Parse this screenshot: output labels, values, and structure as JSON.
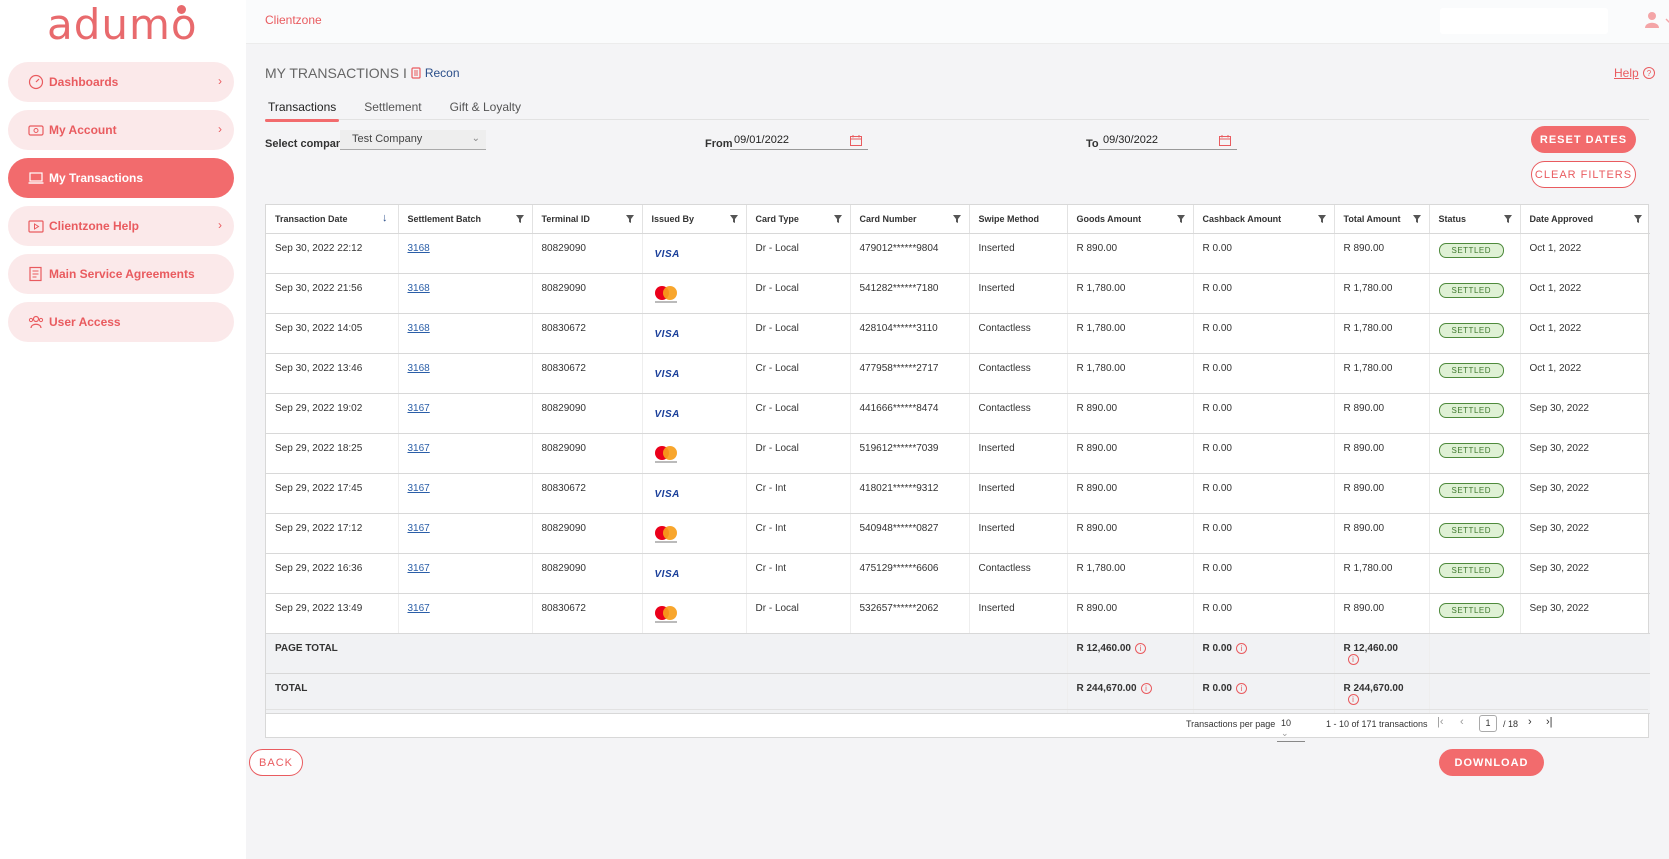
{
  "brand": {
    "logo": "adumo"
  },
  "sidebar": {
    "items": [
      {
        "label": "Dashboards",
        "icon": "dashboard-gauge-icon",
        "has_chevron": true,
        "active": false
      },
      {
        "label": "My Account",
        "icon": "account-money-icon",
        "has_chevron": true,
        "active": false
      },
      {
        "label": "My Transactions",
        "icon": "laptop-icon",
        "has_chevron": false,
        "active": true
      },
      {
        "label": "Clientzone Help",
        "icon": "help-video-icon",
        "has_chevron": true,
        "active": false
      },
      {
        "label": "Main Service Agreements",
        "icon": "agreement-doc-icon",
        "has_chevron": false,
        "active": false
      },
      {
        "label": "User Access",
        "icon": "users-icon",
        "has_chevron": false,
        "active": false
      }
    ]
  },
  "topbar": {
    "breadcrumb": "Clientzone"
  },
  "page": {
    "title": "MY TRANSACTIONS I",
    "recon_label": "Recon",
    "help_label": "Help",
    "tabs": [
      "Transactions",
      "Settlement",
      "Gift & Loyalty"
    ],
    "active_tab": "Transactions"
  },
  "filters": {
    "company_label": "Select company",
    "company_value": "Test Company",
    "from_label": "From",
    "from_value": "09/01/2022",
    "to_label": "To",
    "to_value": "09/30/2022",
    "reset_dates_label": "RESET DATES",
    "clear_filters_label": "CLEAR FILTERS"
  },
  "table": {
    "columns": [
      "Transaction Date",
      "Settlement Batch",
      "Terminal ID",
      "Issued By",
      "Card Type",
      "Card Number",
      "Swipe Method",
      "Goods Amount",
      "Cashback Amount",
      "Total Amount",
      "Status",
      "Date Approved"
    ],
    "rows": [
      {
        "date": "Sep 30, 2022 22:12",
        "batch": "3168",
        "terminal": "80829090",
        "issuer": "visa",
        "card_type": "Dr - Local",
        "card_number": "479012******9804",
        "swipe": "Inserted",
        "goods": "R 890.00",
        "cashback": "R 0.00",
        "total": "R 890.00",
        "status": "SETTLED",
        "approved": "Oct 1, 2022"
      },
      {
        "date": "Sep 30, 2022 21:56",
        "batch": "3168",
        "terminal": "80829090",
        "issuer": "mastercard",
        "card_type": "Dr - Local",
        "card_number": "541282******7180",
        "swipe": "Inserted",
        "goods": "R 1,780.00",
        "cashback": "R 0.00",
        "total": "R 1,780.00",
        "status": "SETTLED",
        "approved": "Oct 1, 2022"
      },
      {
        "date": "Sep 30, 2022 14:05",
        "batch": "3168",
        "terminal": "80830672",
        "issuer": "visa",
        "card_type": "Dr - Local",
        "card_number": "428104******3110",
        "swipe": "Contactless",
        "goods": "R 1,780.00",
        "cashback": "R 0.00",
        "total": "R 1,780.00",
        "status": "SETTLED",
        "approved": "Oct 1, 2022"
      },
      {
        "date": "Sep 30, 2022 13:46",
        "batch": "3168",
        "terminal": "80830672",
        "issuer": "visa",
        "card_type": "Cr - Local",
        "card_number": "477958******2717",
        "swipe": "Contactless",
        "goods": "R 1,780.00",
        "cashback": "R 0.00",
        "total": "R 1,780.00",
        "status": "SETTLED",
        "approved": "Oct 1, 2022"
      },
      {
        "date": "Sep 29, 2022 19:02",
        "batch": "3167",
        "terminal": "80829090",
        "issuer": "visa",
        "card_type": "Cr - Local",
        "card_number": "441666******8474",
        "swipe": "Contactless",
        "goods": "R 890.00",
        "cashback": "R 0.00",
        "total": "R 890.00",
        "status": "SETTLED",
        "approved": "Sep 30, 2022"
      },
      {
        "date": "Sep 29, 2022 18:25",
        "batch": "3167",
        "terminal": "80829090",
        "issuer": "mastercard",
        "card_type": "Dr - Local",
        "card_number": "519612******7039",
        "swipe": "Inserted",
        "goods": "R 890.00",
        "cashback": "R 0.00",
        "total": "R 890.00",
        "status": "SETTLED",
        "approved": "Sep 30, 2022"
      },
      {
        "date": "Sep 29, 2022 17:45",
        "batch": "3167",
        "terminal": "80830672",
        "issuer": "visa",
        "card_type": "Cr - Int",
        "card_number": "418021******9312",
        "swipe": "Inserted",
        "goods": "R 890.00",
        "cashback": "R 0.00",
        "total": "R 890.00",
        "status": "SETTLED",
        "approved": "Sep 30, 2022"
      },
      {
        "date": "Sep 29, 2022 17:12",
        "batch": "3167",
        "terminal": "80829090",
        "issuer": "mastercard",
        "card_type": "Cr - Int",
        "card_number": "540948******0827",
        "swipe": "Inserted",
        "goods": "R 890.00",
        "cashback": "R 0.00",
        "total": "R 890.00",
        "status": "SETTLED",
        "approved": "Sep 30, 2022"
      },
      {
        "date": "Sep 29, 2022 16:36",
        "batch": "3167",
        "terminal": "80829090",
        "issuer": "visa",
        "card_type": "Cr - Int",
        "card_number": "475129******6606",
        "swipe": "Contactless",
        "goods": "R 1,780.00",
        "cashback": "R 0.00",
        "total": "R 1,780.00",
        "status": "SETTLED",
        "approved": "Sep 30, 2022"
      },
      {
        "date": "Sep 29, 2022 13:49",
        "batch": "3167",
        "terminal": "80830672",
        "issuer": "mastercard",
        "card_type": "Dr - Local",
        "card_number": "532657******2062",
        "swipe": "Inserted",
        "goods": "R 890.00",
        "cashback": "R 0.00",
        "total": "R 890.00",
        "status": "SETTLED",
        "approved": "Sep 30, 2022"
      }
    ],
    "page_total": {
      "label": "PAGE TOTAL",
      "goods": "R 12,460.00",
      "cashback": "R 0.00",
      "total": "R 12,460.00"
    },
    "grand_total": {
      "label": "TOTAL",
      "goods": "R 244,670.00",
      "cashback": "R 0.00",
      "total": "R 244,670.00"
    },
    "visa_text": "VISA"
  },
  "pager": {
    "per_page_label": "Transactions per page",
    "per_page_value": "10",
    "range_text": "1 - 10 of 171 transactions",
    "current_page": "1",
    "page_of": "/ 18"
  },
  "footer": {
    "back_label": "BACK",
    "download_label": "DOWNLOAD"
  },
  "colors": {
    "accent": "#f26b6d",
    "accent_light": "#fbe9ea",
    "link": "#2a5ea8",
    "settled_bg": "#dff1d5"
  }
}
